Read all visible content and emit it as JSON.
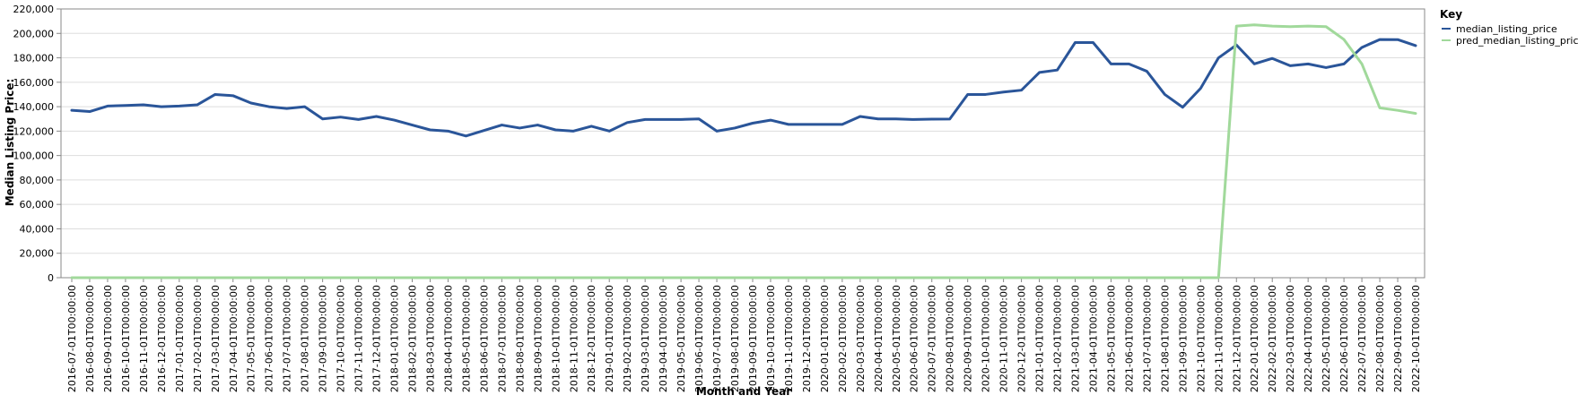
{
  "chart_data": {
    "type": "line",
    "xlabel": "Month and Year",
    "ylabel": "Median Listing Price:",
    "ylim": [
      0,
      220000
    ],
    "yticks": [
      0,
      20000,
      40000,
      60000,
      80000,
      100000,
      120000,
      140000,
      160000,
      180000,
      200000,
      220000
    ],
    "ytick_labels": [
      "0",
      "20,000",
      "40,000",
      "60,000",
      "80,000",
      "100,000",
      "120,000",
      "140,000",
      "160,000",
      "180,000",
      "200,000",
      "220,000"
    ],
    "grid": true,
    "legend": {
      "title": "Key",
      "placement": "top-right"
    },
    "x": [
      "2016-07-01T00:00:00",
      "2016-08-01T00:00:00",
      "2016-09-01T00:00:00",
      "2016-10-01T00:00:00",
      "2016-11-01T00:00:00",
      "2016-12-01T00:00:00",
      "2017-01-01T00:00:00",
      "2017-02-01T00:00:00",
      "2017-03-01T00:00:00",
      "2017-04-01T00:00:00",
      "2017-05-01T00:00:00",
      "2017-06-01T00:00:00",
      "2017-07-01T00:00:00",
      "2017-08-01T00:00:00",
      "2017-09-01T00:00:00",
      "2017-10-01T00:00:00",
      "2017-11-01T00:00:00",
      "2017-12-01T00:00:00",
      "2018-01-01T00:00:00",
      "2018-02-01T00:00:00",
      "2018-03-01T00:00:00",
      "2018-04-01T00:00:00",
      "2018-05-01T00:00:00",
      "2018-06-01T00:00:00",
      "2018-07-01T00:00:00",
      "2018-08-01T00:00:00",
      "2018-09-01T00:00:00",
      "2018-10-01T00:00:00",
      "2018-11-01T00:00:00",
      "2018-12-01T00:00:00",
      "2019-01-01T00:00:00",
      "2019-02-01T00:00:00",
      "2019-03-01T00:00:00",
      "2019-04-01T00:00:00",
      "2019-05-01T00:00:00",
      "2019-06-01T00:00:00",
      "2019-07-01T00:00:00",
      "2019-08-01T00:00:00",
      "2019-09-01T00:00:00",
      "2019-10-01T00:00:00",
      "2019-11-01T00:00:00",
      "2019-12-01T00:00:00",
      "2020-01-01T00:00:00",
      "2020-02-01T00:00:00",
      "2020-03-01T00:00:00",
      "2020-04-01T00:00:00",
      "2020-05-01T00:00:00",
      "2020-06-01T00:00:00",
      "2020-07-01T00:00:00",
      "2020-08-01T00:00:00",
      "2020-09-01T00:00:00",
      "2020-10-01T00:00:00",
      "2020-11-01T00:00:00",
      "2020-12-01T00:00:00",
      "2021-01-01T00:00:00",
      "2021-02-01T00:00:00",
      "2021-03-01T00:00:00",
      "2021-04-01T00:00:00",
      "2021-05-01T00:00:00",
      "2021-06-01T00:00:00",
      "2021-07-01T00:00:00",
      "2021-08-01T00:00:00",
      "2021-09-01T00:00:00",
      "2021-10-01T00:00:00",
      "2021-11-01T00:00:00",
      "2021-12-01T00:00:00",
      "2022-01-01T00:00:00",
      "2022-02-01T00:00:00",
      "2022-03-01T00:00:00",
      "2022-04-01T00:00:00",
      "2022-05-01T00:00:00",
      "2022-06-01T00:00:00",
      "2022-07-01T00:00:00",
      "2022-08-01T00:00:00",
      "2022-09-01T00:00:00",
      "2022-10-01T00:00:00"
    ],
    "series": [
      {
        "name": "median_listing_price",
        "color": "#2a5599",
        "values": [
          137000,
          136000,
          140500,
          141000,
          141500,
          140000,
          140500,
          141500,
          150000,
          149000,
          143000,
          140000,
          138500,
          140000,
          130000,
          131500,
          129500,
          132000,
          129000,
          125000,
          121000,
          120000,
          116000,
          120500,
          125000,
          122500,
          125000,
          121000,
          120000,
          124000,
          120000,
          127000,
          129500,
          129500,
          129500,
          130000,
          120000,
          122500,
          126500,
          129000,
          125500,
          125500,
          125500,
          125500,
          132000,
          130000,
          130000,
          129500,
          129800,
          129900,
          150000,
          150000,
          152000,
          153500,
          168000,
          170000,
          192500,
          192500,
          175000,
          175000,
          169000,
          150000,
          139500,
          155000,
          180000,
          190500,
          175000,
          179500,
          173500,
          175000,
          172000,
          175000,
          188500,
          195000,
          194900,
          190000
        ]
      },
      {
        "name": "pred_median_listing_price",
        "color": "#a1d99b",
        "values": [
          0,
          0,
          0,
          0,
          0,
          0,
          0,
          0,
          0,
          0,
          0,
          0,
          0,
          0,
          0,
          0,
          0,
          0,
          0,
          0,
          0,
          0,
          0,
          0,
          0,
          0,
          0,
          0,
          0,
          0,
          0,
          0,
          0,
          0,
          0,
          0,
          0,
          0,
          0,
          0,
          0,
          0,
          0,
          0,
          0,
          0,
          0,
          0,
          0,
          0,
          0,
          0,
          0,
          0,
          0,
          0,
          0,
          0,
          0,
          0,
          0,
          0,
          0,
          0,
          0,
          206000,
          207000,
          206000,
          205500,
          206000,
          205500,
          195000,
          175000,
          139000,
          137000,
          134500
        ]
      }
    ]
  }
}
